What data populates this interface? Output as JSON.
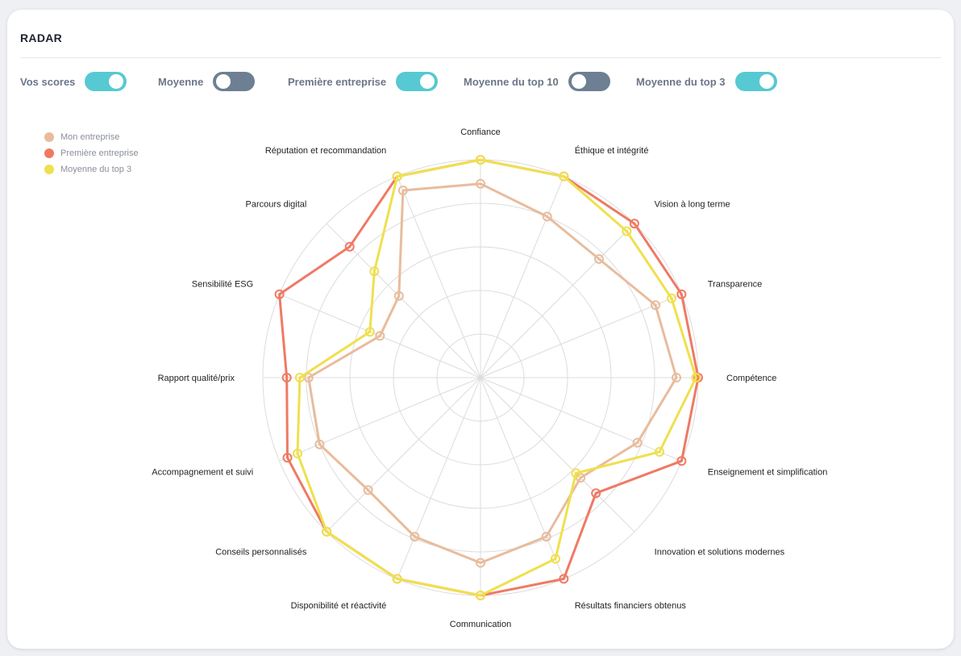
{
  "card": {
    "title": "RADAR"
  },
  "toggles": [
    {
      "label": "Vos scores",
      "on": true
    },
    {
      "label": "Moyenne",
      "on": false
    },
    {
      "label": "Première entreprise",
      "on": true
    },
    {
      "label": "Moyenne du top 10",
      "on": false
    },
    {
      "label": "Moyenne du top 3",
      "on": true
    }
  ],
  "colors": {
    "toggle_on": "#56c9d2",
    "toggle_off": "#6e7f93"
  },
  "chart_data": {
    "type": "radar",
    "categories": [
      "Confiance",
      "Éthique et intégrité",
      "Vision à long terme",
      "Transparence",
      "Compétence",
      "Enseignement et simplification",
      "Innovation et solutions modernes",
      "Résultats financiers obtenus",
      "Communication",
      "Disponibilité et réactivité",
      "Conseils personnalisés",
      "Accompagnement et suivi",
      "Rapport qualité/prix",
      "Sensibilité ESG",
      "Parcours digital",
      "Réputation et recommandation"
    ],
    "rmax": 100,
    "grid_rings": 5,
    "legend_position": "top-left",
    "series": [
      {
        "name": "Mon entreprise",
        "color": "#e8bc9d",
        "values": [
          89,
          80,
          77,
          87,
          90,
          78,
          65,
          79,
          85,
          79,
          73,
          80,
          79,
          50,
          53,
          93
        ]
      },
      {
        "name": "Première entreprise",
        "color": "#ef7a64",
        "values": [
          100,
          100,
          100,
          100,
          100,
          100,
          75,
          100,
          100,
          100,
          100,
          96,
          89,
          100,
          85,
          100
        ]
      },
      {
        "name": "Moyenne du top 3",
        "color": "#efe04e",
        "values": [
          100,
          100,
          95,
          95,
          99,
          89,
          62,
          90,
          100,
          100,
          100,
          91,
          83,
          55,
          69,
          100
        ]
      }
    ]
  }
}
